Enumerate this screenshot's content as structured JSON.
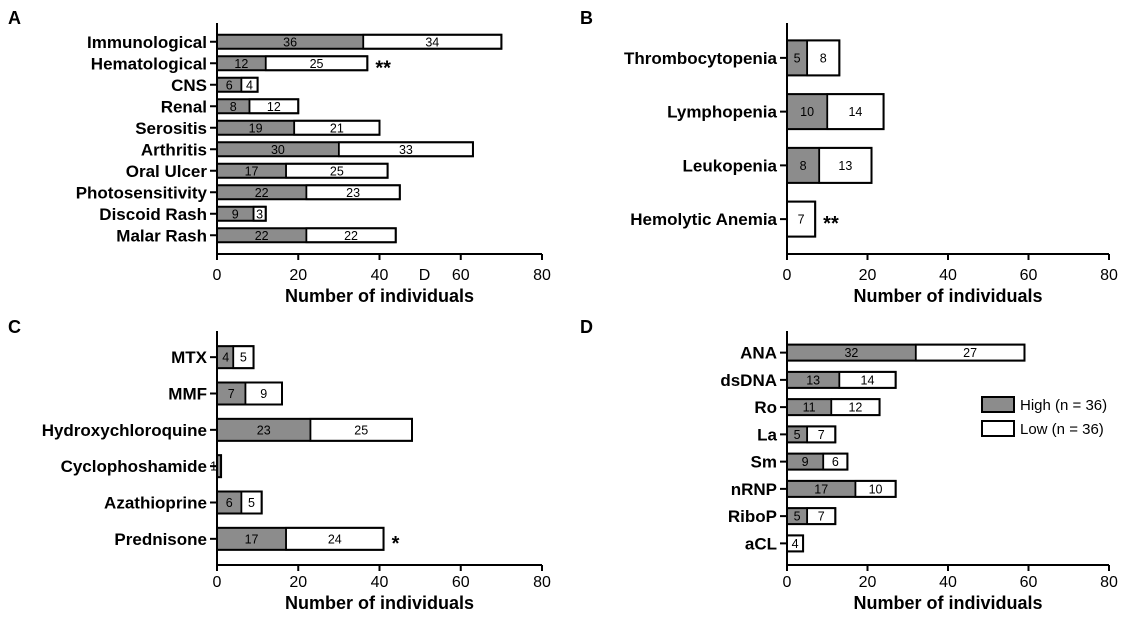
{
  "colors": {
    "high": "#8c8c8c",
    "low": "#ffffff",
    "stroke": "#000000"
  },
  "legend": [
    {
      "label": "High (n = 36)",
      "color": "#8c8c8c"
    },
    {
      "label": "Low (n = 36)",
      "color": "#ffffff"
    }
  ],
  "chart_data": [
    {
      "panel": "A",
      "type": "bar",
      "orientation": "horizontal",
      "stacked": true,
      "xlabel": "Number of individuals",
      "xlim": [
        0,
        80
      ],
      "xticks": [
        0,
        20,
        40,
        60,
        80
      ],
      "categories": [
        "Immunological",
        "Hematological",
        "CNS",
        "Renal",
        "Serositis",
        "Arthritis",
        "Oral Ulcer",
        "Photosensitivity",
        "Discoid Rash",
        "Malar Rash"
      ],
      "series": [
        {
          "name": "High (n = 36)",
          "values": [
            36,
            12,
            6,
            8,
            19,
            30,
            17,
            22,
            9,
            22
          ]
        },
        {
          "name": "Low (n = 36)",
          "values": [
            34,
            25,
            4,
            12,
            21,
            33,
            25,
            23,
            3,
            22
          ]
        }
      ],
      "annotations": [
        {
          "category": "Hematological",
          "text": "**"
        }
      ],
      "stray_text": [
        {
          "text": "D",
          "near_tick": 40
        }
      ]
    },
    {
      "panel": "B",
      "type": "bar",
      "orientation": "horizontal",
      "stacked": true,
      "xlabel": "Number of individuals",
      "xlim": [
        0,
        80
      ],
      "xticks": [
        0,
        20,
        40,
        60,
        80
      ],
      "categories": [
        "Thrombocytopenia",
        "Lymphopenia",
        "Leukopenia",
        "Hemolytic Anemia"
      ],
      "series": [
        {
          "name": "High (n = 36)",
          "values": [
            5,
            10,
            8,
            0
          ]
        },
        {
          "name": "Low (n = 36)",
          "values": [
            8,
            14,
            13,
            7
          ]
        }
      ],
      "annotations": [
        {
          "category": "Hemolytic Anemia",
          "text": "**"
        }
      ]
    },
    {
      "panel": "C",
      "type": "bar",
      "orientation": "horizontal",
      "stacked": true,
      "xlabel": "Number of individuals",
      "xlim": [
        0,
        80
      ],
      "xticks": [
        0,
        20,
        40,
        60,
        80
      ],
      "categories": [
        "MTX",
        "MMF",
        "Hydroxychloroquine",
        "Cyclophoshamide",
        "Azathioprine",
        "Prednisone"
      ],
      "series": [
        {
          "name": "High (n = 36)",
          "values": [
            4,
            7,
            23,
            1,
            6,
            17
          ]
        },
        {
          "name": "Low (n = 36)",
          "values": [
            5,
            9,
            25,
            0,
            5,
            24
          ]
        }
      ],
      "annotations": [
        {
          "category": "Prednisone",
          "text": "*"
        }
      ]
    },
    {
      "panel": "D",
      "type": "bar",
      "orientation": "horizontal",
      "stacked": true,
      "xlabel": "Number of individuals",
      "xlim": [
        0,
        80
      ],
      "xticks": [
        0,
        20,
        40,
        60,
        80
      ],
      "categories": [
        "ANA",
        "dsDNA",
        "Ro",
        "La",
        "Sm",
        "nRNP",
        "RiboP",
        "aCL"
      ],
      "series": [
        {
          "name": "High (n = 36)",
          "values": [
            32,
            13,
            11,
            5,
            9,
            17,
            5,
            0
          ]
        },
        {
          "name": "Low (n = 36)",
          "values": [
            27,
            14,
            12,
            7,
            6,
            10,
            7,
            4
          ]
        }
      ],
      "annotations": []
    }
  ]
}
